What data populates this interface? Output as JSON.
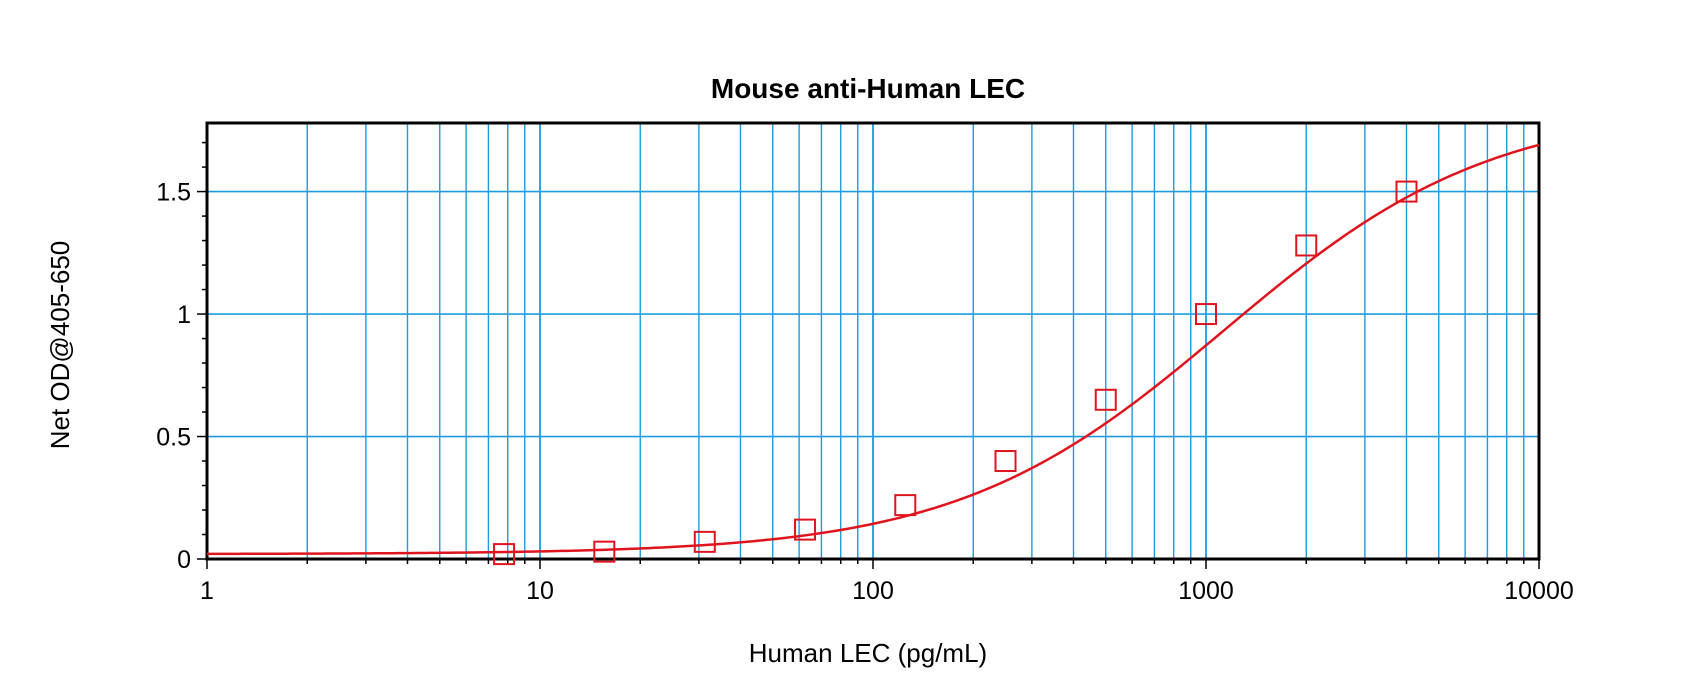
{
  "chart_data": {
    "type": "scatter",
    "title": "Mouse anti-Human LEC",
    "xlabel": "Human LEC (pg/mL)",
    "ylabel": "Net OD@405-650",
    "xscale": "log",
    "xlim": [
      1,
      10000
    ],
    "ylim": [
      0,
      1.78
    ],
    "grid": true,
    "x_tick_labels": [
      "1",
      "10",
      "100",
      "1000",
      "10000"
    ],
    "y_tick_labels": [
      "0",
      "0.5",
      "1",
      "1.5"
    ],
    "series": [
      {
        "marker": "square",
        "x": [
          7.8,
          15.6,
          31.25,
          62.5,
          125,
          250,
          500,
          1000,
          2000,
          4000
        ],
        "y": [
          0.02,
          0.03,
          0.07,
          0.12,
          0.22,
          0.4,
          0.65,
          1.0,
          1.28,
          1.5
        ]
      }
    ],
    "fit_curve": {
      "model": "4PL",
      "bottom": 0.02,
      "top": 1.85,
      "ec50": 1136,
      "hill": 1.08
    },
    "colors": {
      "grid": "#1E9BE0",
      "series": "#E0141E",
      "axis": "#000000"
    }
  }
}
